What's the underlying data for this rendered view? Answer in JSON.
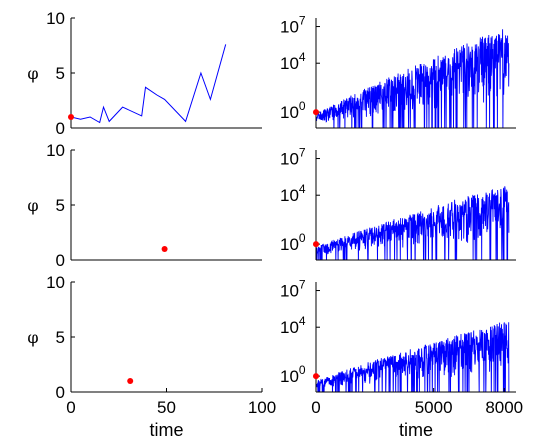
{
  "chart_data": [
    {
      "type": "line",
      "ylabel": "φ",
      "xlabel": "",
      "xlim": [
        0,
        100
      ],
      "ylim": [
        0,
        10
      ],
      "xticks": [],
      "yticks": [
        0,
        5,
        10
      ],
      "series": [
        {
          "color": "#0000ff",
          "x": [
            0,
            5,
            10,
            15,
            17,
            20,
            27,
            37,
            39,
            45,
            49,
            60,
            68,
            73,
            81
          ],
          "y": [
            1.0,
            0.8,
            1.0,
            0.5,
            1.9,
            0.6,
            1.9,
            1.1,
            3.7,
            3.0,
            2.6,
            0.6,
            5.0,
            2.6,
            7.6
          ]
        }
      ],
      "markers": [
        {
          "x": 0,
          "y": 1.0,
          "color": "#ff0000"
        }
      ]
    },
    {
      "type": "line",
      "ylabel": "",
      "xlabel": "",
      "yscale": "log",
      "xlim": [
        0,
        8500
      ],
      "ylim": [
        0.05,
        50000000
      ],
      "xticks": [],
      "yticks": [
        {
          "base": "10",
          "exp": "7",
          "value": 10000000
        },
        {
          "base": "10",
          "exp": "4",
          "value": 10000
        },
        {
          "base": "10",
          "exp": "0",
          "value": 1
        }
      ],
      "trace": {
        "color": "#0000ff",
        "x_end": 8200,
        "log10_start": -0.2,
        "log10_env_end": 7.1,
        "log10_floor": -1.3
      },
      "markers": [
        {
          "x": 0,
          "y": 1.0,
          "color": "#ff0000"
        }
      ]
    },
    {
      "type": "scatter",
      "ylabel": "φ",
      "xlabel": "",
      "xlim": [
        0,
        100
      ],
      "ylim": [
        0,
        10
      ],
      "xticks": [],
      "yticks": [
        0,
        5,
        10
      ],
      "markers": [
        {
          "x": 49,
          "y": 1.0,
          "color": "#ff0000"
        }
      ]
    },
    {
      "type": "line",
      "ylabel": "",
      "xlabel": "",
      "yscale": "log",
      "xlim": [
        0,
        8500
      ],
      "ylim": [
        0.05,
        50000000
      ],
      "xticks": [],
      "yticks": [
        {
          "base": "10",
          "exp": "7",
          "value": 10000000
        },
        {
          "base": "10",
          "exp": "4",
          "value": 10000
        },
        {
          "base": "10",
          "exp": "0",
          "value": 1
        }
      ],
      "trace": {
        "color": "#0000ff",
        "x_end": 8200,
        "log10_start": -0.3,
        "log10_env_end": 5.0,
        "log10_floor": -1.2
      },
      "markers": [
        {
          "x": 0,
          "y": 1.0,
          "color": "#ff0000"
        }
      ]
    },
    {
      "type": "scatter",
      "ylabel": "φ",
      "xlabel": "time",
      "xlim": [
        0,
        100
      ],
      "ylim": [
        0,
        10
      ],
      "xticks": [
        0,
        50,
        100
      ],
      "yticks": [
        0,
        5,
        10
      ],
      "markers": [
        {
          "x": 31,
          "y": 1.0,
          "color": "#ff0000"
        }
      ]
    },
    {
      "type": "line",
      "ylabel": "",
      "xlabel": "time",
      "yscale": "log",
      "xlim": [
        0,
        8500
      ],
      "ylim": [
        0.05,
        50000000
      ],
      "xticks": [
        0,
        5000,
        8000
      ],
      "yticks": [
        {
          "base": "10",
          "exp": "7",
          "value": 10000000
        },
        {
          "base": "10",
          "exp": "4",
          "value": 10000
        },
        {
          "base": "10",
          "exp": "0",
          "value": 1
        }
      ],
      "trace": {
        "color": "#0000ff",
        "x_end": 8200,
        "log10_start": -0.4,
        "log10_env_end": 4.6,
        "log10_floor": -1.3
      },
      "markers": [
        {
          "x": 0,
          "y": 1.0,
          "color": "#ff0000"
        }
      ]
    }
  ]
}
